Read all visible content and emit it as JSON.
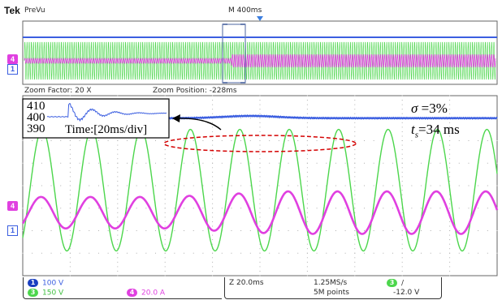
{
  "header": {
    "brand": "Tek",
    "mode": "PreVu",
    "timebase": "M 400ms"
  },
  "zoom_info": {
    "factor": "Zoom Factor: 20 X",
    "position": "Zoom Position: -228ms"
  },
  "annotations": {
    "sigma_symbol": "σ",
    "sigma_value": " =3%",
    "ts_symbol": "t",
    "ts_sub": "s",
    "ts_value": "=34 ms"
  },
  "inset": {
    "ticks": [
      "410",
      "400",
      "390"
    ],
    "time_label": "Time:[20ms/div]"
  },
  "markers": {
    "ch4": "4",
    "ch1": "1"
  },
  "status": {
    "ch1_num": "1",
    "ch1_scale": "100 V",
    "ch3_num": "3",
    "ch3_scale": "150 V",
    "ch4_num": "4",
    "ch4_scale": "20.0 A",
    "horizontal": "Z 20.0ms",
    "sample_rate": "1.25MS/s",
    "record_length": "5M points",
    "trig_num": "3",
    "trig_slope": "/",
    "trig_level": "-12.0 V"
  },
  "colors": {
    "ch1": "#3b5ee0",
    "ch3": "#4cd64c",
    "ch4": "#e040e0",
    "grid": "#b0b0b0",
    "highlight": "#d40000"
  },
  "chart_data": {
    "type": "line",
    "x_divisions": 10,
    "y_divisions": 8,
    "series": [
      {
        "channel": "1",
        "scale": "100 V",
        "cycles": 0,
        "level": 3.0,
        "bump": 0.1
      },
      {
        "channel": "3",
        "scale": "150 V",
        "cycles": 9.6,
        "amplitude": 2.7,
        "offset": -0.2
      },
      {
        "channel": "4",
        "scale": "20.0 A",
        "cycles": 9.6,
        "amplitude": 0.7,
        "offset": -1.2,
        "growth": 0.35
      }
    ],
    "inset": {
      "ylim": [
        390,
        410
      ],
      "start": 400,
      "overshoot": 412,
      "settle": 403
    }
  }
}
